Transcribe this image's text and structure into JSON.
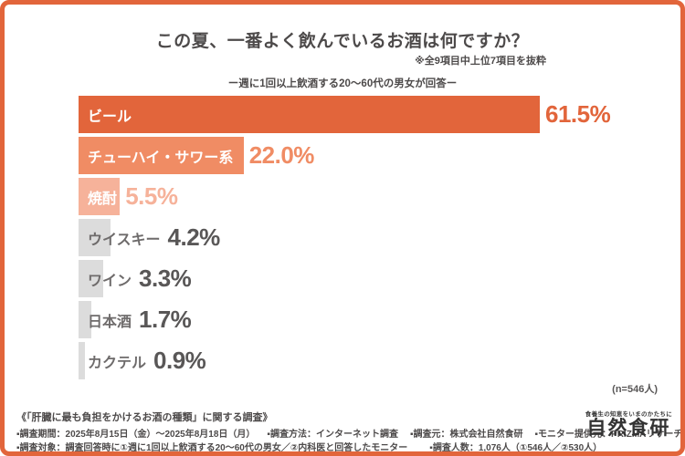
{
  "header": {
    "title": "この夏、一番よく飲んでいるお酒は何ですか？",
    "note": "※全9項目中上位7項目を抜粋",
    "subtitle": "ー週に1回以上飲酒する20～60代の男女が回答ー"
  },
  "chart_data": {
    "type": "bar",
    "orientation": "horizontal",
    "title": "この夏、一番よく飲んでいるお酒は何ですか？",
    "categories": [
      "ビール",
      "チューハイ・サワー系",
      "焼酎",
      "ウイスキー",
      "ワイン",
      "日本酒",
      "カクテル"
    ],
    "values": [
      61.5,
      22.0,
      5.5,
      4.2,
      3.3,
      1.7,
      0.9
    ],
    "value_labels": [
      "61.5%",
      "22.0%",
      "5.5%",
      "4.2%",
      "3.3%",
      "1.7%",
      "0.9%"
    ],
    "unit": "%",
    "xlim": [
      0,
      65
    ],
    "grid": false,
    "legend": false,
    "sample_note": "(n=546人)",
    "bar_colors": [
      "#e2653b",
      "#f08c64",
      "#f6b29a",
      "#dcdcdc",
      "#dcdcdc",
      "#dcdcdc",
      "#dcdcdc"
    ],
    "value_colors": [
      "#e2653b",
      "#f08c64",
      "#f6b29a",
      "#595757",
      "#595757",
      "#595757",
      "#595757"
    ],
    "label_inside": [
      true,
      true,
      true,
      false,
      false,
      false,
      false
    ]
  },
  "footer": {
    "survey_title": "《「肝臓に最も負担をかけるお酒の種類」に関する調査》",
    "line1": [
      "▪調査期間：2025年8月15日（金）～2025年8月18日（月）",
      "▪調査方法：インターネット調査",
      "▪調査元：株式会社自然食研",
      "▪モニター提供元：PRIZMAリサーチ"
    ],
    "line2": [
      "▪調査対象：調査回答時に①週に1回以上飲酒する20～60代の男女／②内科医と回答したモニター",
      "▪調査人数：1,076人（①546人／②530人）"
    ]
  },
  "logo": {
    "tagline": "食養生の知恵をいまのかたちに",
    "name": "自然食研"
  },
  "colors": {
    "accent": "#e2653b",
    "bar_secondary": "#f08c64",
    "bar_tertiary": "#f6b29a",
    "bar_gray": "#dcdcdc",
    "text_dark": "#4d4a4a",
    "text_gray": "#595757",
    "category_gray": "#6e6b6b",
    "background": "#ffffff"
  }
}
